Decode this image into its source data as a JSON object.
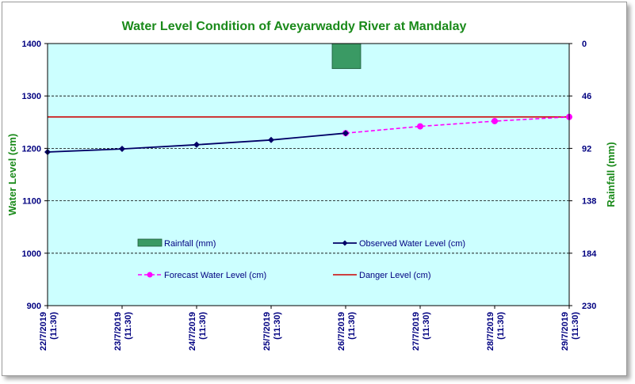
{
  "chart_data": {
    "type": "line",
    "title": "Water Level Condition  of Aveyarwaddy  River at Mandalay",
    "ylabel": "Water Level (cm)",
    "y2label": "Rainfall (mm)",
    "ylim": [
      900,
      1400
    ],
    "y_ticks": [
      "1400",
      "1300",
      "1200",
      "1100",
      "1000",
      "900"
    ],
    "y2lim": [
      0,
      230
    ],
    "y2_inverted": true,
    "y2_ticks": [
      "0",
      "46",
      "92",
      "138",
      "184",
      "230"
    ],
    "categories": [
      [
        "22/7/2019",
        "(11:30)"
      ],
      [
        "23/7/2019",
        "(11:30)"
      ],
      [
        "24/7/2019",
        "(11:30)"
      ],
      [
        "25/7/2019",
        "(11:30)"
      ],
      [
        "26/7/2019",
        "(11:30)"
      ],
      [
        "27/7/2019",
        "(11:30)"
      ],
      [
        "28/7/2019",
        "(11:30)"
      ],
      [
        "29/7/2019",
        "(11:30)"
      ]
    ],
    "grid": "horizontal dashed",
    "colors": {
      "plot_bg": "#ccffff",
      "rainfall": "#3a9a64",
      "observed": "#000066",
      "forecast": "#ff00ff",
      "danger": "#cc0000",
      "title": "#1a8a1a",
      "ticks": "#000080"
    },
    "series": [
      {
        "name": "Rainfall (mm)",
        "kind": "bar",
        "axis": "right",
        "values": [
          0,
          0,
          0,
          0,
          22,
          0,
          0,
          0
        ]
      },
      {
        "name": "Observed Water Level (cm)",
        "kind": "line-marker",
        "axis": "left",
        "values": [
          1193,
          1199,
          1207,
          1216,
          1229,
          null,
          null,
          null
        ]
      },
      {
        "name": "Forecast Water Level (cm)",
        "kind": "dashed-line-marker",
        "axis": "left",
        "values": [
          null,
          null,
          null,
          null,
          1229,
          1242,
          1252,
          1260
        ]
      },
      {
        "name": "Danger Level (cm)",
        "kind": "line",
        "axis": "left",
        "values": [
          1260,
          1260,
          1260,
          1260,
          1260,
          1260,
          1260,
          1260
        ]
      }
    ]
  }
}
